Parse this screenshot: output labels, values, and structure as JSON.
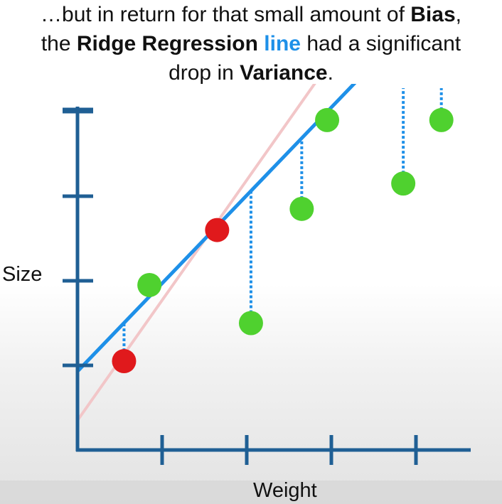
{
  "caption": {
    "line1_prefix": "…but in return for that small amount of ",
    "line1_bold": "Bias",
    "line1_suffix": ",",
    "line2_prefix": "the ",
    "line2_bold": "Ridge Regression",
    "line2_space": " ",
    "line2_blue": "line",
    "line2_suffix": " had a significant",
    "line3_prefix": "drop in ",
    "line3_bold": "Variance",
    "line3_suffix": "."
  },
  "axes": {
    "ylabel": "Size",
    "xlabel": "Weight"
  },
  "colors": {
    "axis": "#1f5f94",
    "ridge_line": "#1e90e8",
    "least_squares_line": "#f2c6c8",
    "training_point": "#e0191c",
    "testing_point": "#4fd12f",
    "residual": "#1e90e8"
  },
  "chart_data": {
    "type": "scatter",
    "title": "",
    "xlabel": "Weight",
    "ylabel": "Size",
    "series": [
      {
        "role": "training",
        "color": "#e0191c",
        "points": [
          {
            "x": 0.55,
            "y": 1.05
          },
          {
            "x": 1.65,
            "y": 2.6
          }
        ]
      },
      {
        "role": "testing",
        "color": "#4fd12f",
        "points": [
          {
            "x": 0.85,
            "y": 1.95
          },
          {
            "x": 2.05,
            "y": 1.5
          },
          {
            "x": 2.65,
            "y": 2.85
          },
          {
            "x": 2.95,
            "y": 3.9
          },
          {
            "x": 3.85,
            "y": 3.15
          },
          {
            "x": 4.3,
            "y": 3.9
          }
        ]
      }
    ],
    "lines": [
      {
        "role": "ridge",
        "color": "#1e90e8",
        "intercept": 0.93,
        "slope": 1.04
      },
      {
        "role": "least-squares",
        "color": "#f2c6c8",
        "intercept": 0.35,
        "slope": 1.42
      }
    ],
    "residuals": [
      {
        "x": 0.55,
        "y_from": 1.05,
        "y_to": 1.5
      },
      {
        "x": 0.85,
        "y_from": 1.95,
        "y_to": 1.81
      },
      {
        "x": 2.05,
        "y_from": 1.5,
        "y_to": 3.06
      },
      {
        "x": 2.65,
        "y_from": 2.85,
        "y_to": 3.69
      },
      {
        "x": 2.95,
        "y_from": 3.9,
        "y_to": 4.0
      },
      {
        "x": 3.85,
        "y_from": 3.15,
        "y_to": 4.93
      },
      {
        "x": 4.3,
        "y_from": 3.9,
        "y_to": 5.4
      }
    ],
    "x_ticks": [
      1,
      2,
      3,
      4
    ],
    "y_ticks": [
      1,
      2,
      3,
      4
    ],
    "xlim": [
      0,
      4.7
    ],
    "ylim": [
      0,
      4.2
    ],
    "grid": false,
    "legend": "none"
  }
}
